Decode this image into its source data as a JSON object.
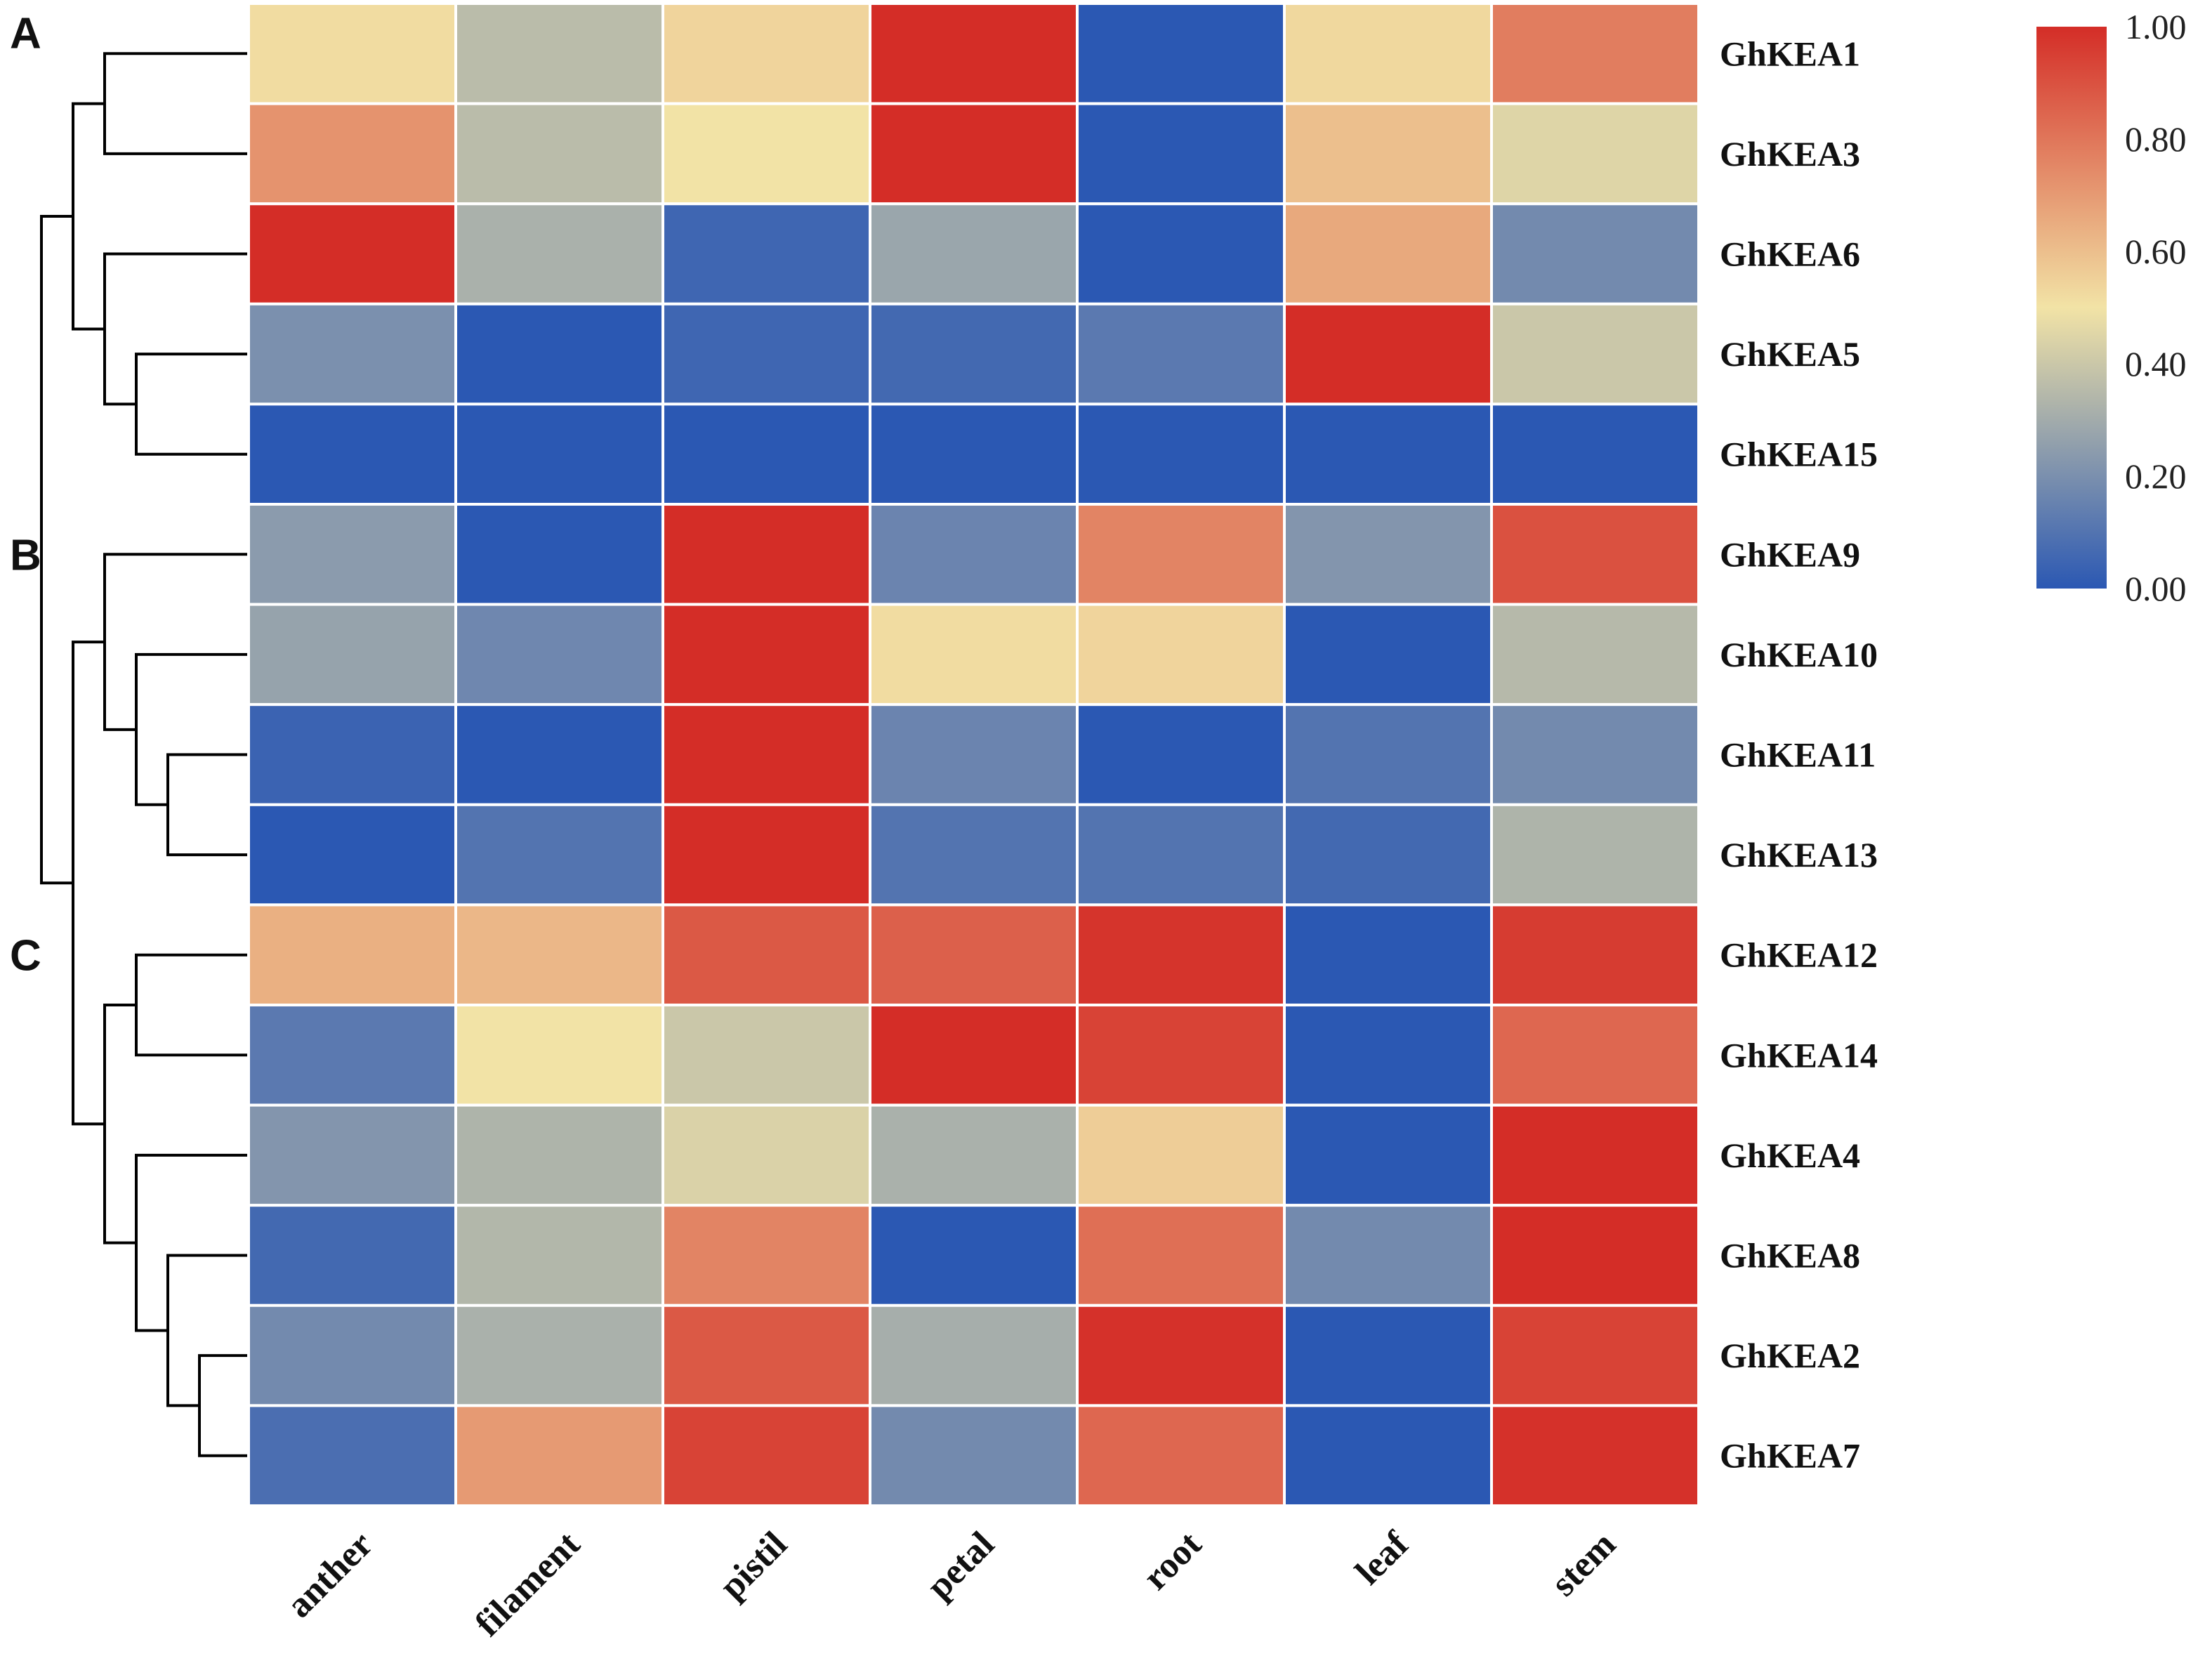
{
  "chart_data": {
    "type": "heatmap",
    "title": "",
    "columns": [
      "anther",
      "filament",
      "pistil",
      "petal",
      "root",
      "leaf",
      "stem"
    ],
    "rows": [
      "GhKEA1",
      "GhKEA3",
      "GhKEA6",
      "GhKEA5",
      "GhKEA15",
      "GhKEA9",
      "GhKEA10",
      "GhKEA11",
      "GhKEA13",
      "GhKEA12",
      "GhKEA14",
      "GhKEA4",
      "GhKEA8",
      "GhKEA2",
      "GhKEA7"
    ],
    "values": [
      [
        0.52,
        0.36,
        0.54,
        1.0,
        0.0,
        0.53,
        0.78
      ],
      [
        0.72,
        0.36,
        0.5,
        1.0,
        0.0,
        0.6,
        0.45
      ],
      [
        1.0,
        0.32,
        0.05,
        0.28,
        0.0,
        0.66,
        0.18
      ],
      [
        0.2,
        0.0,
        0.05,
        0.06,
        0.12,
        1.0,
        0.4
      ],
      [
        0.0,
        0.0,
        0.0,
        0.0,
        0.0,
        0.0,
        0.0
      ],
      [
        0.24,
        0.0,
        1.0,
        0.16,
        0.76,
        0.22,
        0.9
      ],
      [
        0.27,
        0.17,
        1.0,
        0.52,
        0.54,
        0.0,
        0.35
      ],
      [
        0.04,
        0.0,
        1.0,
        0.16,
        0.0,
        0.1,
        0.18
      ],
      [
        0.0,
        0.1,
        1.0,
        0.1,
        0.1,
        0.06,
        0.33
      ],
      [
        0.64,
        0.62,
        0.88,
        0.86,
        0.98,
        0.0,
        0.96
      ],
      [
        0.12,
        0.5,
        0.4,
        1.0,
        0.94,
        0.0,
        0.84
      ],
      [
        0.22,
        0.33,
        0.44,
        0.32,
        0.56,
        0.0,
        1.0
      ],
      [
        0.06,
        0.34,
        0.76,
        0.0,
        0.82,
        0.18,
        1.0
      ],
      [
        0.18,
        0.32,
        0.88,
        0.31,
        0.99,
        0.0,
        0.94
      ],
      [
        0.08,
        0.7,
        0.94,
        0.18,
        0.84,
        0.0,
        0.99
      ]
    ],
    "colorscale": {
      "min": 0.0,
      "max": 1.0,
      "stops": [
        {
          "value": 0.0,
          "color": "#2b58b3"
        },
        {
          "value": 0.5,
          "color": "#f2e3a6"
        },
        {
          "value": 1.0,
          "color": "#d42d27"
        }
      ],
      "ticks": [
        "0.00",
        "0.20",
        "0.40",
        "0.60",
        "0.80",
        "1.00"
      ]
    },
    "clusters": [
      {
        "letter": "A",
        "rows": [
          "GhKEA1",
          "GhKEA3",
          "GhKEA6",
          "GhKEA5",
          "GhKEA15"
        ]
      },
      {
        "letter": "B",
        "rows": [
          "GhKEA9",
          "GhKEA10",
          "GhKEA11",
          "GhKEA13"
        ]
      },
      {
        "letter": "C",
        "rows": [
          "GhKEA12",
          "GhKEA14",
          "GhKEA4",
          "GhKEA8",
          "GhKEA2",
          "GhKEA7"
        ]
      }
    ],
    "dendrogram": [
      {
        "id": "n1",
        "children": [
          "GhKEA1",
          "GhKEA3"
        ],
        "level": 3
      },
      {
        "id": "n2",
        "children": [
          "GhKEA5",
          "GhKEA15"
        ],
        "level": 2
      },
      {
        "id": "n3",
        "children": [
          "GhKEA6",
          "n2"
        ],
        "level": 3
      },
      {
        "id": "n4",
        "children": [
          "n1",
          "n3"
        ],
        "level": 4
      },
      {
        "id": "n5",
        "children": [
          "GhKEA11",
          "GhKEA13"
        ],
        "level": 1
      },
      {
        "id": "n6",
        "children": [
          "GhKEA10",
          "n5"
        ],
        "level": 2
      },
      {
        "id": "n7",
        "children": [
          "GhKEA9",
          "n6"
        ],
        "level": 3
      },
      {
        "id": "n8",
        "children": [
          "GhKEA12",
          "GhKEA14"
        ],
        "level": 2
      },
      {
        "id": "n9",
        "children": [
          "GhKEA2",
          "GhKEA7"
        ],
        "level": 0
      },
      {
        "id": "n10",
        "children": [
          "GhKEA8",
          "n9"
        ],
        "level": 1
      },
      {
        "id": "n11",
        "children": [
          "GhKEA4",
          "n10"
        ],
        "level": 2
      },
      {
        "id": "n12",
        "children": [
          "n8",
          "n11"
        ],
        "level": 3
      },
      {
        "id": "n13",
        "children": [
          "n7",
          "n12"
        ],
        "level": 4
      },
      {
        "id": "n14",
        "children": [
          "n4",
          "n13"
        ],
        "level": 5
      }
    ]
  }
}
